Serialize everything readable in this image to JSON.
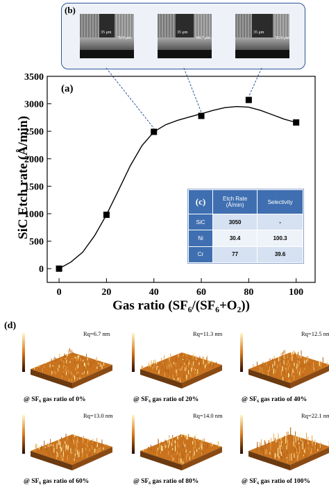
{
  "panel_b": {
    "label": "(b)",
    "images": [
      {
        "width_label": "35 μm",
        "depth_label": "78.9 μm"
      },
      {
        "width_label": "35 μm",
        "depth_label": "84.7 μm"
      },
      {
        "width_label": "35 μm",
        "depth_label": "92.6 μm"
      }
    ]
  },
  "chart_data": {
    "type": "scatter",
    "panel_label": "(a)",
    "xlabel": "Gas ratio (SF₆/(SF₆+O₂))",
    "ylabel": "SiC Etch rate (Å/min)",
    "xlim": [
      -5,
      108
    ],
    "ylim": [
      -250,
      3500
    ],
    "xticks": [
      0,
      20,
      40,
      60,
      80,
      100
    ],
    "yticks": [
      0,
      500,
      1000,
      1500,
      2000,
      2500,
      3000,
      3500
    ],
    "x": [
      0,
      20,
      40,
      60,
      80,
      100
    ],
    "y": [
      0,
      980,
      2490,
      2780,
      3070,
      2660
    ],
    "fit_curve": {
      "x": [
        0,
        5,
        10,
        15,
        20,
        25,
        30,
        35,
        40,
        45,
        50,
        55,
        60,
        65,
        70,
        75,
        80,
        85,
        90,
        95,
        100
      ],
      "y": [
        0,
        120,
        300,
        600,
        980,
        1420,
        1870,
        2240,
        2490,
        2620,
        2700,
        2760,
        2820,
        2880,
        2930,
        2950,
        2940,
        2880,
        2800,
        2720,
        2660
      ]
    },
    "grid": false,
    "legend": "none"
  },
  "table_c": {
    "label": "(c)",
    "headers": [
      "",
      "Etch Rate\n(Å/min)",
      "Selectivity"
    ],
    "rows": [
      [
        "SiC",
        "3050",
        "-"
      ],
      [
        "Ni",
        "30.4",
        "100.3"
      ],
      [
        "Cr",
        "77",
        "39.6"
      ]
    ],
    "colors": {
      "header": "#3f6fb0",
      "row_label": "#3f6fb0",
      "row_even": "#d6e1f1",
      "row_odd": "#eef2f9"
    }
  },
  "panel_d": {
    "label": "(d)",
    "items": [
      {
        "rq": "Rq=6.7 nm",
        "caption": "@ SF₆ gas ratio of 0%",
        "roughness": 0.3
      },
      {
        "rq": "Rq=11.3 nm",
        "caption": "@ SF₆ gas ratio of 20%",
        "roughness": 0.45
      },
      {
        "rq": "Rq=12.5 nm",
        "caption": "@ SF₆ gas ratio of 40%",
        "roughness": 0.5
      },
      {
        "rq": "Rq=13.0 nm",
        "caption": "@ SF₆ gas ratio of 60%",
        "roughness": 0.52
      },
      {
        "rq": "Rq=14.0 nm",
        "caption": "@ SF₆ gas ratio of 80%",
        "roughness": 0.56
      },
      {
        "rq": "Rq=22.1 nm",
        "caption": "@ SF₆ gas ratio of 100%",
        "roughness": 0.9
      }
    ]
  }
}
